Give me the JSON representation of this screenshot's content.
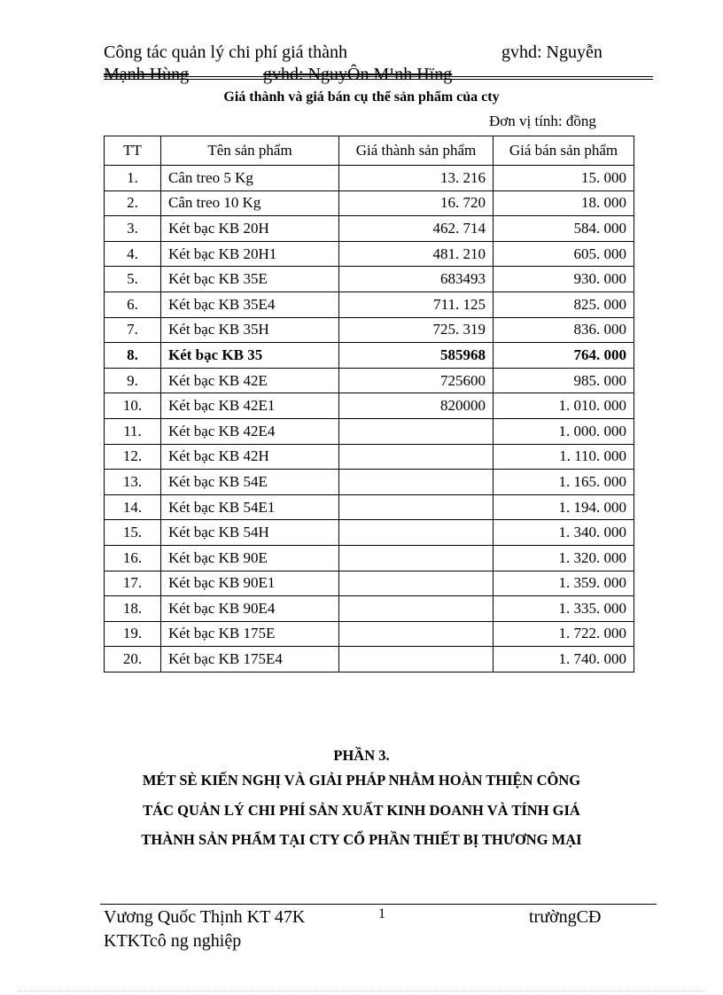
{
  "header": {
    "left": "Công tác quản lý chi phí giá thành",
    "right": "gvhd: Nguyễn",
    "line2a": "Mạnh Hùng",
    "line2b": "gvhd: NguyÔn M¹nh Hïng"
  },
  "table_title": "Giá thành và giá bán cụ thể sản phẩm của cty",
  "unit": "Đơn vị tính: đồng",
  "columns": [
    "TT",
    "Tên sản phẩm",
    "Giá thành sản phẩm",
    "Giá bán sản phẩm"
  ],
  "rows": [
    [
      "1.",
      "Cân treo 5 Kg",
      "13. 216",
      "15. 000"
    ],
    [
      "2.",
      "Cân treo 10 Kg",
      "16. 720",
      "18. 000"
    ],
    [
      "3.",
      "Két bạc KB 20H",
      "462. 714",
      "584. 000"
    ],
    [
      "4.",
      "Két bạc KB 20H1",
      "481. 210",
      "605. 000"
    ],
    [
      "5.",
      "Két bạc KB 35E",
      "683493",
      "930. 000"
    ],
    [
      "6.",
      "Két bạc KB 35E4",
      "711. 125",
      "825. 000"
    ],
    [
      "7.",
      "Két bạc KB 35H",
      "725. 319",
      "836. 000"
    ],
    [
      "8.",
      "Két bạc KB 35",
      "585968",
      "764. 000"
    ],
    [
      "9.",
      "Két bạc KB 42E",
      "725600",
      "985. 000"
    ],
    [
      "10.",
      "Két bạc KB 42E1",
      "820000",
      "1. 010. 000"
    ],
    [
      "11.",
      "Két bạc KB 42E4",
      "",
      "1. 000. 000"
    ],
    [
      "12.",
      "Két bạc KB 42H",
      "",
      "1. 110. 000"
    ],
    [
      "13.",
      "Két bạc KB 54E",
      "",
      "1. 165. 000"
    ],
    [
      "14.",
      "Két bạc KB 54E1",
      "",
      "1. 194. 000"
    ],
    [
      "15.",
      "Két bạc KB 54H",
      "",
      "1. 340. 000"
    ],
    [
      "16.",
      "Két bạc KB 90E",
      "",
      "1. 320. 000"
    ],
    [
      "17.",
      "Két bạc KB 90E1",
      "",
      "1. 359. 000"
    ],
    [
      "18.",
      "Két bạc KB 90E4",
      "",
      "1. 335. 000"
    ],
    [
      "19.",
      "Két bạc KB 175E",
      "",
      "1. 722. 000"
    ],
    [
      "20.",
      "Két bạc KB 175E4",
      "",
      "1. 740. 000"
    ]
  ],
  "section": {
    "title": "PHẦN 3.",
    "lines": [
      "MÉT SÈ KIẾN NGHỊ VÀ GIẢI PHÁP NHẰM HOÀN THIỆN CÔNG",
      "TÁC QUẢN LÝ CHI PHÍ SẢN XUẤT KINH DOANH VÀ TÍNH GIÁ",
      "THÀNH SẢN PHẨM TẠI CTY CỔ PHẦN THIẾT BỊ THƯƠNG MẠI"
    ]
  },
  "footer": {
    "left": "Vương Quốc Thịnh KT 47K",
    "page": "1",
    "right": "trườngCĐ",
    "line2": "KTKTcô ng nghiệp"
  }
}
